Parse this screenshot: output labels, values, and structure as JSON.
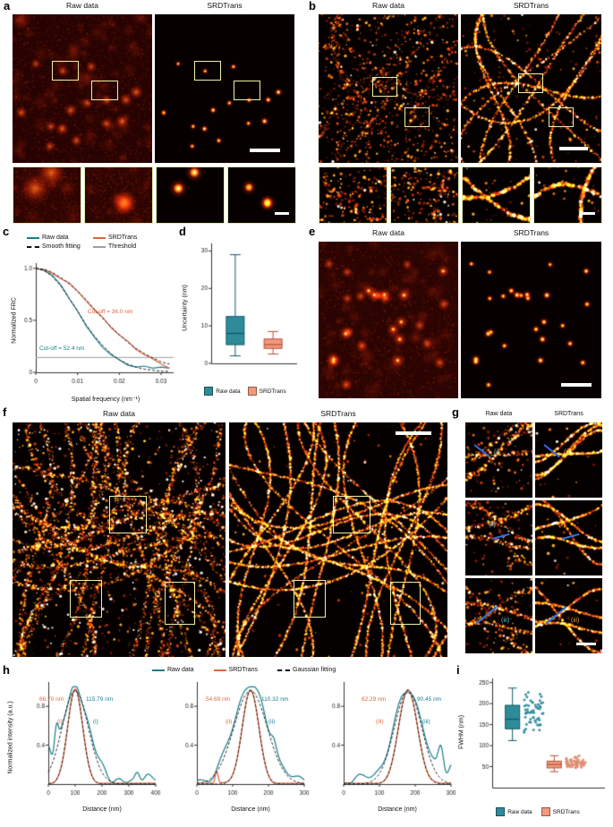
{
  "colors": {
    "raw_teal": "#177e8c",
    "srd_orange": "#e0643f",
    "raw_fill": "#2f8a99",
    "srd_fill": "#f0997e",
    "fit_black": "#111111",
    "threshold_gray": "#9aa0a6",
    "roi_yellow": "#edf0a6",
    "crop_border": "#dde9b0",
    "roi_line_blue": "#2f6fe0",
    "g_marker_raw": "#55c6d6",
    "g_marker_srd": "#f0a050"
  },
  "panels": {
    "a": {
      "letter": "a",
      "title_left": "Raw data",
      "title_right": "SRDTrans"
    },
    "b": {
      "letter": "b",
      "title_left": "Raw data",
      "title_right": "SRDTrans"
    },
    "c": {
      "letter": "c",
      "legend": [
        {
          "label": "Raw data"
        },
        {
          "label": "SRDTrans"
        },
        {
          "label": "Smooth fitting"
        },
        {
          "label": "Threshold"
        }
      ]
    },
    "d": {
      "letter": "d",
      "legend": [
        {
          "label": "Raw data"
        },
        {
          "label": "SRDTrans"
        }
      ]
    },
    "e": {
      "letter": "e",
      "title_left": "Raw data",
      "title_right": "SRDTrans"
    },
    "f": {
      "letter": "f",
      "title_left": "Raw data",
      "title_right": "SRDTrans"
    },
    "g": {
      "letter": "g",
      "title_left": "Raw data",
      "title_right": "SRDTrans",
      "rows": [
        {
          "label": "(i)"
        },
        {
          "label": "(ii)"
        },
        {
          "label": "(iii)"
        }
      ]
    },
    "h": {
      "letter": "h",
      "legend": [
        {
          "label": "Raw data"
        },
        {
          "label": "SRDTrans"
        },
        {
          "label": "Gaussian fitting"
        }
      ]
    },
    "i": {
      "letter": "i",
      "legend": [
        {
          "label": "Raw data"
        },
        {
          "label": "SRDTrans"
        }
      ]
    }
  },
  "chart_data": [
    {
      "id": "frc",
      "type": "line",
      "panel": "c",
      "title": "",
      "xlabel": "Spatial frequency (nm⁻¹)",
      "ylabel": "Normalized FRC",
      "xlim": [
        0,
        0.033
      ],
      "ylim": [
        0,
        1.05
      ],
      "xticks": [
        0,
        0.01,
        0.02,
        0.03
      ],
      "yticks": [
        0,
        0.5,
        1.0
      ],
      "threshold": 0.143,
      "x": [
        0,
        0.002,
        0.004,
        0.006,
        0.008,
        0.01,
        0.012,
        0.014,
        0.016,
        0.018,
        0.02,
        0.022,
        0.024,
        0.026,
        0.028,
        0.03,
        0.032
      ],
      "series": [
        {
          "name": "Raw data",
          "color_key": "raw_teal",
          "style": "solid",
          "values": [
            1.0,
            0.98,
            0.93,
            0.84,
            0.71,
            0.59,
            0.45,
            0.34,
            0.24,
            0.17,
            0.12,
            0.07,
            0.05,
            0.06,
            0.04,
            0.05,
            0.04
          ]
        },
        {
          "name": "SRDTrans",
          "color_key": "srd_orange",
          "style": "solid",
          "values": [
            1.0,
            0.99,
            0.95,
            0.9,
            0.86,
            0.78,
            0.69,
            0.6,
            0.53,
            0.43,
            0.36,
            0.3,
            0.22,
            0.17,
            0.13,
            0.08,
            0.04
          ]
        },
        {
          "name": "Smooth fitting (Raw data)",
          "color_key": "fit_black",
          "style": "dashed",
          "values": [
            1.0,
            0.98,
            0.92,
            0.83,
            0.71,
            0.59,
            0.46,
            0.35,
            0.26,
            0.18,
            0.12,
            0.08,
            0.05,
            0.03,
            0.02,
            0.01,
            0.01
          ]
        },
        {
          "name": "Smooth fitting (SRDTrans)",
          "color_key": "fit_black",
          "style": "dashed",
          "values": [
            1.0,
            0.99,
            0.96,
            0.91,
            0.85,
            0.78,
            0.7,
            0.61,
            0.52,
            0.44,
            0.36,
            0.29,
            0.23,
            0.18,
            0.14,
            0.1,
            0.08
          ]
        }
      ],
      "annotations": [
        {
          "text": "Cut-off = 36.0 nm",
          "value_nm": 36.0,
          "series": "SRDTrans"
        },
        {
          "text": "Cut-off = 52.4 nm",
          "value_nm": 52.4,
          "series": "Raw data"
        }
      ]
    },
    {
      "id": "uncertainty",
      "type": "box",
      "panel": "d",
      "ylabel": "Uncertainty (nm)",
      "ylim": [
        0,
        32
      ],
      "yticks": [
        0,
        10,
        20,
        30
      ],
      "categories": [
        "Raw data",
        "SRDTrans"
      ],
      "boxes": [
        {
          "name": "Raw data",
          "whisker_low": 2,
          "q1": 5,
          "median": 8,
          "q3": 12.5,
          "whisker_high": 29
        },
        {
          "name": "SRDTrans",
          "whisker_low": 2.5,
          "q1": 4,
          "median": 5,
          "q3": 6.5,
          "whisker_high": 8.5
        }
      ]
    },
    {
      "id": "profiles",
      "type": "line",
      "panel": "h",
      "ylabel": "Normalized intensity (a.u.)",
      "yticks": [
        0.4,
        0.8
      ],
      "plots": [
        {
          "marker": "(i)",
          "xlabel": "Distance (nm)",
          "xlim": [
            0,
            400
          ],
          "xticks": [
            0,
            100,
            200,
            300,
            400
          ],
          "peak_center_nm": 100,
          "srd_fwhm_label": "66.70 nm",
          "raw_fwhm_label": "115.79 nm",
          "srd_fwhm_nm": 66.7,
          "raw_fwhm_nm": 115.79
        },
        {
          "marker": "(ii)",
          "xlabel": "Distance (nm)",
          "xlim": [
            0,
            300
          ],
          "xticks": [
            0,
            100,
            200,
            300
          ],
          "peak_center_nm": 150,
          "srd_fwhm_label": "54.69 nm",
          "raw_fwhm_label": "110.32 nm",
          "srd_fwhm_nm": 54.69,
          "raw_fwhm_nm": 110.32
        },
        {
          "marker": "(iii)",
          "xlabel": "Distance (nm)",
          "xlim": [
            0,
            300
          ],
          "xticks": [
            0,
            100,
            200,
            300
          ],
          "peak_center_nm": 180,
          "srd_fwhm_label": "62.29 nm",
          "raw_fwhm_label": "90.45 nm",
          "srd_fwhm_nm": 62.29,
          "raw_fwhm_nm": 90.45
        }
      ]
    },
    {
      "id": "fwhm",
      "type": "box",
      "panel": "i",
      "ylabel": "FWHM (nm)",
      "ylim": [
        0,
        260
      ],
      "yticks": [
        50,
        100,
        150,
        200,
        250
      ],
      "boxes": [
        {
          "name": "Raw data",
          "whisker_low": 112,
          "q1": 140,
          "median": 163,
          "q3": 196,
          "whisker_high": 237,
          "scatter_range": [
            118,
            232
          ],
          "scatter_n": 58
        },
        {
          "name": "SRDTrans",
          "whisker_low": 38,
          "q1": 47,
          "median": 55,
          "q3": 63,
          "whisker_high": 76,
          "scatter_range": [
            40,
            78
          ],
          "scatter_n": 58
        }
      ]
    }
  ]
}
